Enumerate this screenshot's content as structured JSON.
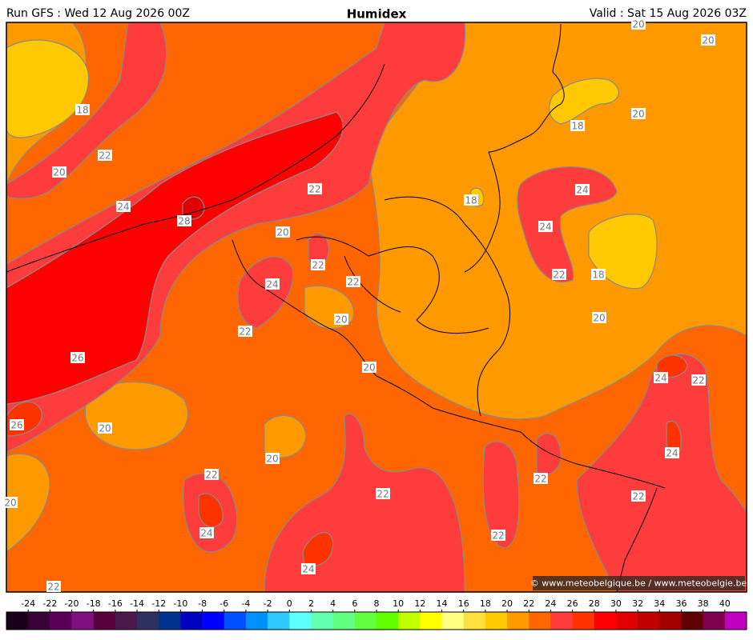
{
  "header": {
    "run": "Run GFS : Wed 12 Aug 2026 00Z",
    "title": "Humidex",
    "valid": "Valid : Sat 15 Aug 2026 03Z"
  },
  "contour_labels": [
    "20",
    "20",
    "18",
    "18",
    "20",
    "22",
    "20",
    "22",
    "18",
    "24",
    "24",
    "28",
    "24",
    "20",
    "22",
    "18",
    "22",
    "22",
    "24",
    "20",
    "20",
    "22",
    "26",
    "20",
    "24",
    "22",
    "26",
    "20",
    "20",
    "24",
    "22",
    "22",
    "22",
    "22",
    "20",
    "24",
    "22",
    "24",
    "22"
  ],
  "credit": "© www.meteobelgique.be / www.meteobelgie.be",
  "colorbar": {
    "ticks": [
      -24,
      -22,
      -20,
      -18,
      -16,
      -14,
      -12,
      -10,
      -8,
      -6,
      -4,
      -2,
      0,
      2,
      4,
      6,
      8,
      10,
      12,
      14,
      16,
      18,
      20,
      22,
      24,
      26,
      28,
      30,
      32,
      34,
      36,
      38,
      40
    ],
    "colors": [
      "#1a001a",
      "#3a003a",
      "#5a005a",
      "#801080",
      "#5a0040",
      "#4a1a4a",
      "#303060",
      "#003090",
      "#0000c0",
      "#0000ff",
      "#0050ff",
      "#0090ff",
      "#30c8ff",
      "#60ffff",
      "#60ffb0",
      "#60ff80",
      "#60ff40",
      "#60ff00",
      "#c0ff00",
      "#ffff00",
      "#ffff80",
      "#ffe040",
      "#ffc800",
      "#ff9900",
      "#ff6600",
      "#ff3c3c",
      "#ff3300",
      "#ff0000",
      "#e00000",
      "#c00000",
      "#a00000",
      "#600000",
      "#800050",
      "#c000c0"
    ]
  }
}
